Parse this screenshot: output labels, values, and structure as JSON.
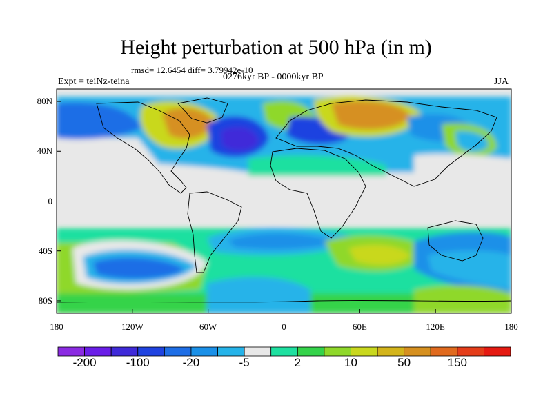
{
  "title": "Height perturbation at 500 hPa (in m)",
  "stats": "rmsd= 12.6454 diff= 3.79942e-10",
  "experiment": "Expt = teiNz-teina",
  "period": "0276kyr BP - 0000kyr BP",
  "season": "JJA",
  "lat_ticks": [
    {
      "label": "80N",
      "lat": 80
    },
    {
      "label": "40N",
      "lat": 40
    },
    {
      "label": "0",
      "lat": 0
    },
    {
      "label": "40S",
      "lat": -40
    },
    {
      "label": "80S",
      "lat": -80
    }
  ],
  "lon_ticks": [
    {
      "label": "180",
      "lon": -180
    },
    {
      "label": "120W",
      "lon": -120
    },
    {
      "label": "60W",
      "lon": -60
    },
    {
      "label": "0",
      "lon": 0
    },
    {
      "label": "60E",
      "lon": 60
    },
    {
      "label": "120E",
      "lon": 120
    },
    {
      "label": "180",
      "lon": 180
    }
  ],
  "colorbar": {
    "colors": [
      "#8b2be2",
      "#6a1ee8",
      "#3f2ad9",
      "#1f43e0",
      "#1e6ee6",
      "#1a90e8",
      "#25b3e9",
      "#e8e8e8",
      "#1ee0a0",
      "#34d34a",
      "#8fd82a",
      "#c9d81e",
      "#d3b41a",
      "#d69020",
      "#e06a1e",
      "#e43d19",
      "#e51a12"
    ],
    "labels": [
      {
        "text": "-200",
        "index": 1
      },
      {
        "text": "-100",
        "index": 3
      },
      {
        "text": "-20",
        "index": 5
      },
      {
        "text": "-5",
        "index": 7
      },
      {
        "text": "2",
        "index": 9
      },
      {
        "text": "10",
        "index": 11
      },
      {
        "text": "50",
        "index": 13
      },
      {
        "text": "150",
        "index": 15
      }
    ]
  }
}
